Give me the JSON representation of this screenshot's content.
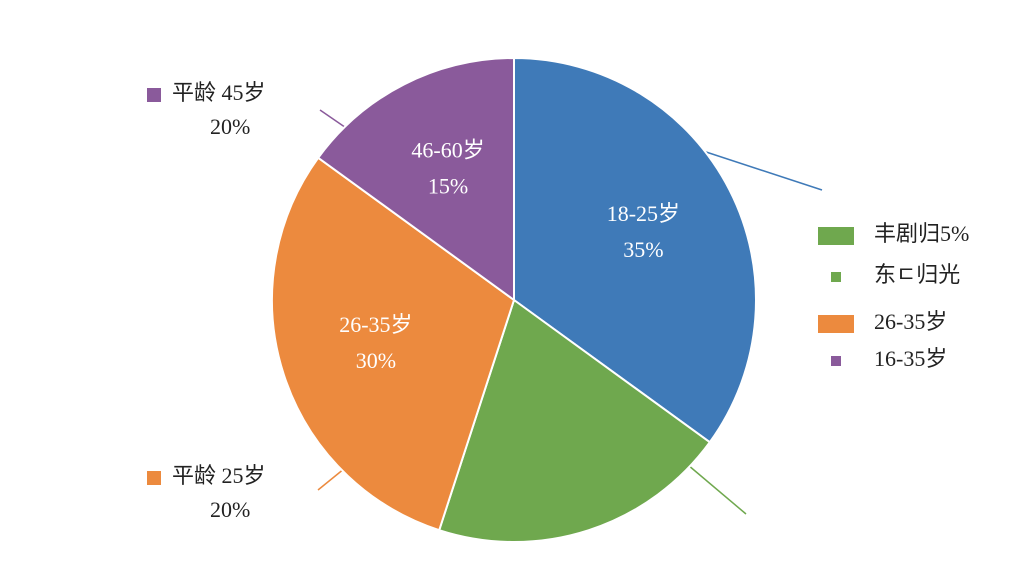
{
  "chart_data": {
    "type": "pie",
    "categories": [
      "18-25岁",
      null,
      "26-35岁",
      "46-60岁"
    ],
    "values": [
      35,
      20,
      30,
      15
    ],
    "value_labels": [
      "35%",
      null,
      "30%",
      "15%"
    ],
    "colors": [
      "#3f7ab8",
      "#6fa84e",
      "#ec8a3e",
      "#8a5a9b"
    ],
    "annotations": [
      {
        "title": "平龄 45岁",
        "text": "20%",
        "color": "#8a5a9b"
      },
      {
        "title": "平龄 25岁",
        "text": "20%",
        "color": "#ec8a3e"
      }
    ],
    "legend": [
      {
        "label": "丰剧归5%",
        "color": "#6fa84e"
      },
      {
        "label": "东ㄷ归光",
        "color": "#6fa84e"
      },
      {
        "label": "26-35岁",
        "color": "#ec8a3e"
      },
      {
        "label": "16-35岁",
        "color": "#8a5a9b"
      }
    ]
  }
}
